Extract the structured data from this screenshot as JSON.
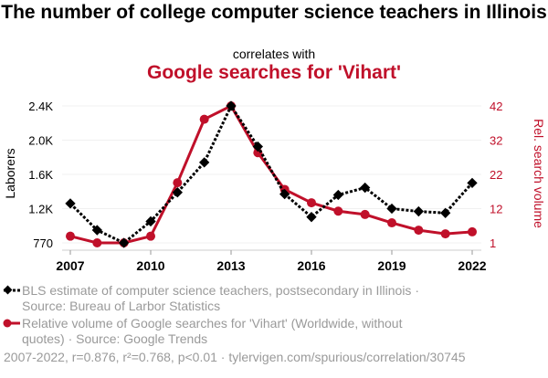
{
  "chart_data": {
    "type": "line",
    "title": "The number of college computer science teachers in Illinois",
    "connector": "correlates with",
    "subtitle": "Google searches for 'Vihart'",
    "x": [
      2007,
      2008,
      2009,
      2010,
      2011,
      2012,
      2013,
      2014,
      2015,
      2016,
      2017,
      2018,
      2019,
      2020,
      2021,
      2022
    ],
    "x_ticks": [
      "2007",
      "2010",
      "2013",
      "2016",
      "2019",
      "2022"
    ],
    "ylabel": "Laborers",
    "y2label": "Rel. search volume",
    "y_ticks": [
      "770",
      "1.2K",
      "1.6K",
      "2.0K",
      "2.4K"
    ],
    "y2_ticks": [
      "1",
      "12",
      "22",
      "32",
      "42"
    ],
    "ylim": [
      770,
      2400
    ],
    "y2lim": [
      1,
      42
    ],
    "series": [
      {
        "name": "BLS estimate of computer science teachers, postsecondary in Illinois · Source: Bureau of Larbor Statistics",
        "axis": "left",
        "color": "#000000",
        "values": [
          1260,
          930,
          770,
          1040,
          1390,
          1740,
          2400,
          1925,
          1370,
          1095,
          1360,
          1445,
          1200,
          1165,
          1145,
          1500
        ]
      },
      {
        "name": "Relative volume of Google searches for 'Vihart' (Worldwide, without quotes) · Source: Google Trends",
        "axis": "right",
        "color": "#c0102a",
        "values": [
          3,
          1,
          1,
          3,
          19,
          38,
          42,
          28,
          17,
          13,
          10.5,
          9.5,
          7,
          4.8,
          3.7,
          4.3
        ]
      }
    ]
  },
  "footer": "2007-2022, r=0.876, r²=0.768, p<0.01 · tylervigen.com/spurious/correlation/30745"
}
